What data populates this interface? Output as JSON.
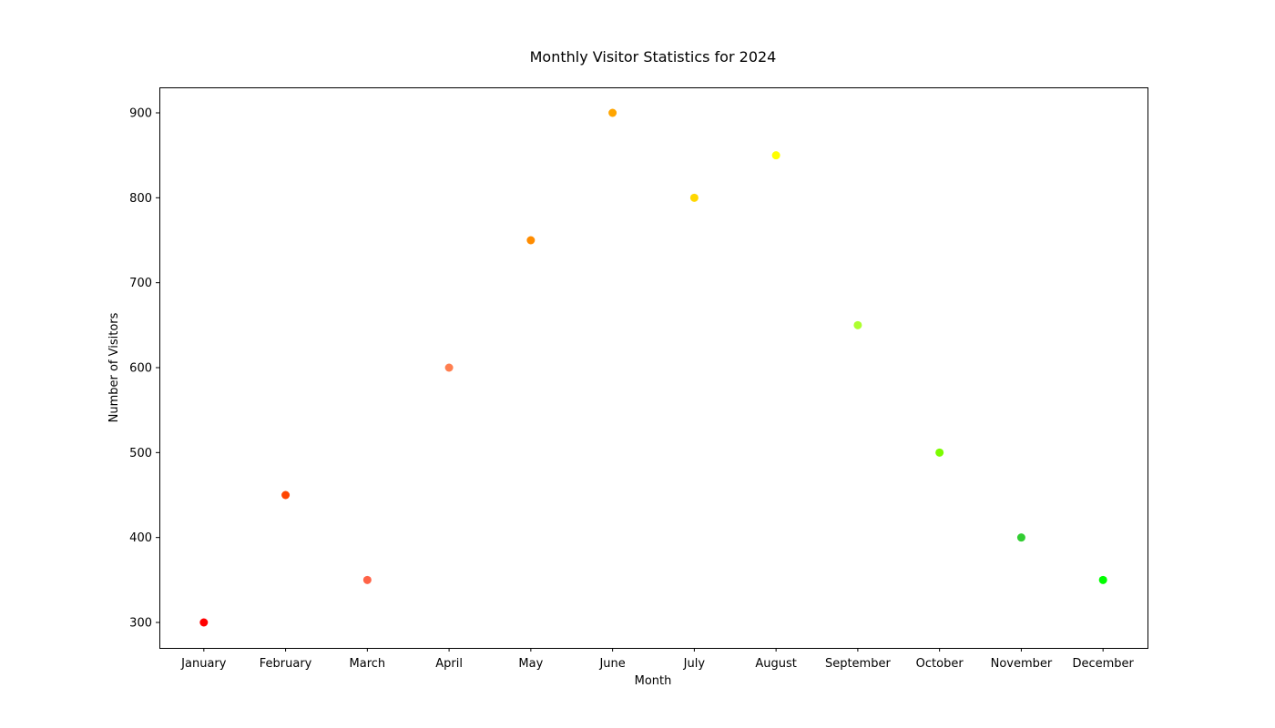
{
  "chart_data": {
    "type": "scatter",
    "title": "Monthly Visitor Statistics for 2024",
    "xlabel": "Month",
    "ylabel": "Number of Visitors",
    "categories": [
      "January",
      "February",
      "March",
      "April",
      "May",
      "June",
      "July",
      "August",
      "September",
      "October",
      "November",
      "December"
    ],
    "values": [
      300,
      450,
      350,
      600,
      750,
      900,
      800,
      850,
      650,
      500,
      400,
      350
    ],
    "point_colors": [
      "#ff0000",
      "#ff4500",
      "#ff6347",
      "#ff7f50",
      "#ff8c00",
      "#ffa500",
      "#ffd700",
      "#ffff00",
      "#adff2f",
      "#7cfc00",
      "#32cd32",
      "#00ff00"
    ],
    "yticks": [
      300,
      400,
      500,
      600,
      700,
      800,
      900
    ],
    "ylim": [
      270,
      930
    ],
    "grid": false,
    "legend": false
  }
}
